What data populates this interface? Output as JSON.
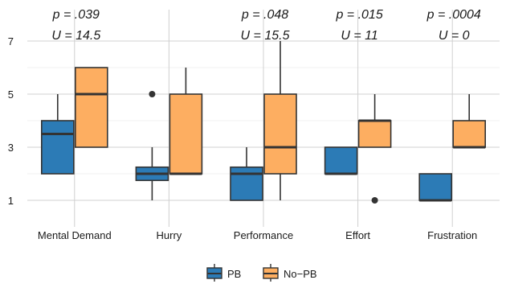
{
  "chart_data": {
    "type": "box",
    "categories": [
      "Mental Demand",
      "Hurry",
      "Performance",
      "Effort",
      "Frustration"
    ],
    "ylim": [
      0,
      7
    ],
    "yticks": [
      1,
      3,
      5,
      7
    ],
    "grid": true,
    "legend_position": "bottom",
    "series": [
      {
        "name": "PB",
        "color": "#2c7bb6",
        "boxes": [
          {
            "q1": 2,
            "median": 3.5,
            "q3": 4,
            "whisker_low": 2,
            "whisker_high": 5,
            "outliers": []
          },
          {
            "q1": 1.75,
            "median": 2,
            "q3": 2.25,
            "whisker_low": 1,
            "whisker_high": 3,
            "outliers": [
              5
            ]
          },
          {
            "q1": 1,
            "median": 2,
            "q3": 2.25,
            "whisker_low": 1,
            "whisker_high": 3,
            "outliers": []
          },
          {
            "q1": 2,
            "median": 2,
            "q3": 3,
            "whisker_low": 2,
            "whisker_high": 3,
            "outliers": []
          },
          {
            "q1": 1,
            "median": 1,
            "q3": 2,
            "whisker_low": 1,
            "whisker_high": 2,
            "outliers": []
          }
        ]
      },
      {
        "name": "No−PB",
        "color": "#fdae61",
        "boxes": [
          {
            "q1": 3,
            "median": 5,
            "q3": 6,
            "whisker_low": 3,
            "whisker_high": 6,
            "outliers": []
          },
          {
            "q1": 2,
            "median": 2,
            "q3": 5,
            "whisker_low": 2,
            "whisker_high": 6,
            "outliers": []
          },
          {
            "q1": 2,
            "median": 3,
            "q3": 5,
            "whisker_low": 1,
            "whisker_high": 7,
            "outliers": []
          },
          {
            "q1": 3,
            "median": 4,
            "q3": 4,
            "whisker_low": 3,
            "whisker_high": 5,
            "outliers": [
              1
            ]
          },
          {
            "q1": 3,
            "median": 3,
            "q3": 4,
            "whisker_low": 3,
            "whisker_high": 5,
            "outliers": []
          }
        ]
      }
    ],
    "annotations": [
      {
        "category": "Mental Demand",
        "p": "p = .039",
        "U": "U = 14.5"
      },
      {
        "category": "Performance",
        "p": "p = .048",
        "U": "U = 15.5"
      },
      {
        "category": "Effort",
        "p": "p = .015",
        "U": "U = 11"
      },
      {
        "category": "Frustration",
        "p": "p = .0004",
        "U": "U = 0"
      }
    ]
  }
}
